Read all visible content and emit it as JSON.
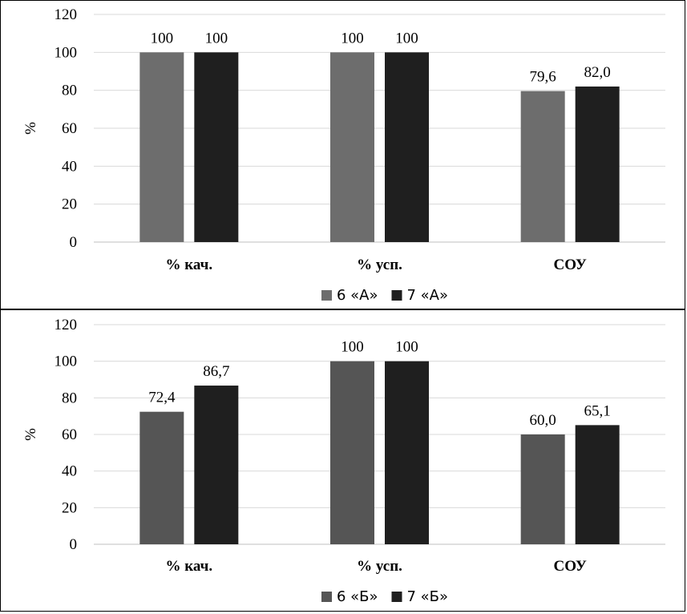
{
  "chart_data": [
    {
      "type": "bar",
      "categories": [
        "% кач.",
        "% усп.",
        "СОУ"
      ],
      "series": [
        {
          "name": "6 «А»",
          "values": [
            100,
            100,
            79.6
          ],
          "labels": [
            "100",
            "100",
            "79,6"
          ],
          "color": "#6d6d6d"
        },
        {
          "name": "7 «А»",
          "values": [
            100,
            100,
            82.0
          ],
          "labels": [
            "100",
            "100",
            "82,0"
          ],
          "color": "#1f1f1f"
        }
      ],
      "ylabel": "%",
      "ylim": [
        0,
        120
      ],
      "yticks": [
        0,
        20,
        40,
        60,
        80,
        100,
        120
      ],
      "grid": true,
      "legend_position": "bottom"
    },
    {
      "type": "bar",
      "categories": [
        "% кач.",
        "% усп.",
        "СОУ"
      ],
      "series": [
        {
          "name": "6 «Б»",
          "values": [
            72.4,
            100,
            60.0
          ],
          "labels": [
            "72,4",
            "100",
            "60,0"
          ],
          "color": "#555555"
        },
        {
          "name": "7 «Б»",
          "values": [
            86.7,
            100,
            65.1
          ],
          "labels": [
            "86,7",
            "100",
            "65,1"
          ],
          "color": "#1f1f1f"
        }
      ],
      "ylabel": "%",
      "ylim": [
        0,
        120
      ],
      "yticks": [
        0,
        20,
        40,
        60,
        80,
        100,
        120
      ],
      "grid": true,
      "legend_position": "bottom"
    }
  ]
}
